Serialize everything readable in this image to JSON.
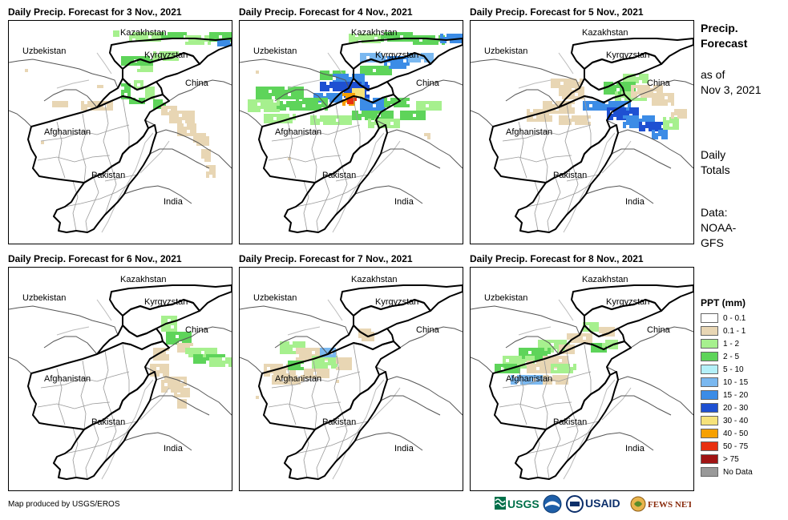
{
  "panels": [
    {
      "title": "Daily Precip. Forecast for 3 Nov., 2021",
      "day": 0
    },
    {
      "title": "Daily Precip. Forecast for 4 Nov., 2021",
      "day": 1
    },
    {
      "title": "Daily Precip. Forecast for 5 Nov., 2021",
      "day": 2
    },
    {
      "title": "Daily Precip. Forecast for 6 Nov., 2021",
      "day": 3
    },
    {
      "title": "Daily Precip. Forecast for 7 Nov., 2021",
      "day": 4
    },
    {
      "title": "Daily Precip. Forecast for 8 Nov., 2021",
      "day": 5
    }
  ],
  "country_labels": {
    "kazakhstan": "Kazakhstan",
    "uzbekistan": "Uzbekistan",
    "kyrgyzstan": "Kyrgyzstan",
    "china": "China",
    "afghanistan": "Afghanistan",
    "pakistan": "Pakistan",
    "india": "India"
  },
  "side": {
    "heading1": "Precip.",
    "heading2": "Forecast",
    "asof1": "as of",
    "asof2": "Nov 3, 2021",
    "daily1": "Daily",
    "daily2": "Totals",
    "data1": "Data:",
    "data2": "NOAA-",
    "data3": "GFS"
  },
  "legend": {
    "title": "PPT (mm)",
    "items": [
      {
        "label": "0 - 0.1",
        "color": "#ffffff"
      },
      {
        "label": "0.1 - 1",
        "color": "#e8d6b4"
      },
      {
        "label": "1 - 2",
        "color": "#a6f08e"
      },
      {
        "label": "2 - 5",
        "color": "#5ed45a"
      },
      {
        "label": "5 - 10",
        "color": "#b4f0f8"
      },
      {
        "label": "10 - 15",
        "color": "#7ab8f0"
      },
      {
        "label": "15 - 20",
        "color": "#3c8ce6"
      },
      {
        "label": "20 - 30",
        "color": "#1e50d2"
      },
      {
        "label": "30 - 40",
        "color": "#f6e27a"
      },
      {
        "label": "40 - 50",
        "color": "#f6a000"
      },
      {
        "label": "50 - 75",
        "color": "#e83010"
      },
      {
        "label": "> 75",
        "color": "#a01414"
      },
      {
        "label": "No Data",
        "color": "#999999"
      }
    ]
  },
  "credit": "Map produced by USGS/EROS",
  "logos": {
    "usgs": "USGS",
    "usaid": "USAID",
    "fewsnet": "FEWS NET"
  }
}
